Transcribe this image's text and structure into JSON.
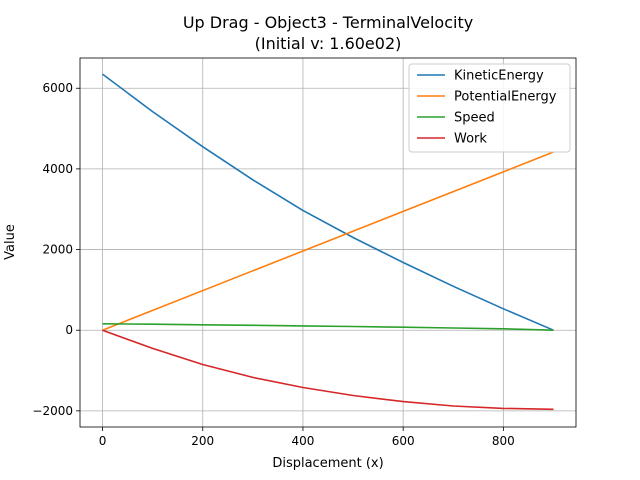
{
  "chart_data": {
    "type": "line",
    "title_line1": "Up Drag - Object3 - TerminalVelocity",
    "title_line2": "(Initial v: 1.60e02)",
    "xlabel": "Displacement (x)",
    "ylabel": "Value",
    "xlim": [
      -45,
      945
    ],
    "ylim": [
      -2400,
      6750
    ],
    "xticks": [
      0,
      200,
      400,
      600,
      800
    ],
    "yticks": [
      -2000,
      0,
      2000,
      4000,
      6000
    ],
    "xtick_labels": [
      "0",
      "200",
      "400",
      "600",
      "800"
    ],
    "ytick_labels": [
      "−2000",
      "0",
      "2000",
      "4000",
      "6000"
    ],
    "grid": true,
    "legend_position": "top-right",
    "series": [
      {
        "name": "KineticEnergy",
        "color": "#1f77b4",
        "x": [
          0,
          100,
          200,
          300,
          400,
          500,
          600,
          700,
          800,
          900
        ],
        "y": [
          6350,
          5420,
          4550,
          3730,
          2970,
          2300,
          1680,
          1090,
          530,
          0
        ]
      },
      {
        "name": "PotentialEnergy",
        "color": "#ff7f0e",
        "x": [
          0,
          900
        ],
        "y": [
          0,
          4420
        ]
      },
      {
        "name": "Speed",
        "color": "#2ca02c",
        "x": [
          0,
          100,
          200,
          300,
          400,
          500,
          600,
          700,
          800,
          900
        ],
        "y": [
          160,
          148,
          135,
          121,
          106,
          91,
          74,
          56,
          36,
          0
        ]
      },
      {
        "name": "Work",
        "color": "#d62728",
        "x": [
          0,
          100,
          200,
          300,
          400,
          500,
          600,
          700,
          800,
          900
        ],
        "y": [
          0,
          -450,
          -850,
          -1170,
          -1420,
          -1620,
          -1770,
          -1880,
          -1940,
          -1960
        ]
      }
    ]
  }
}
